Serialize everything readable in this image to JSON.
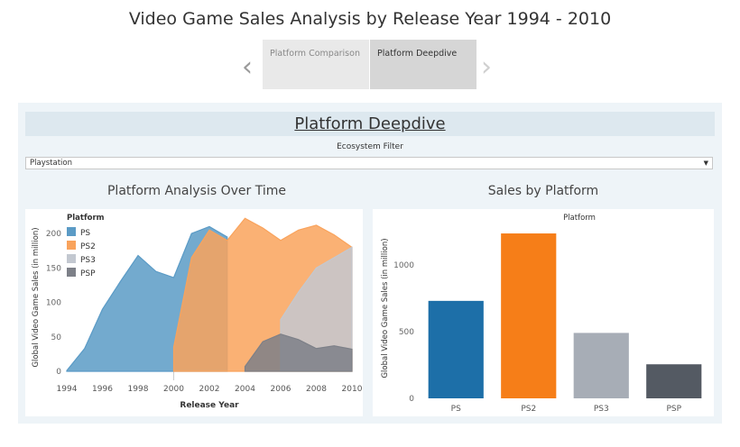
{
  "title": "Video Game Sales Analysis by Release Year 1994 - 2010",
  "tabs": [
    {
      "label": "Platform Comparison"
    },
    {
      "label": "Platform Deepdive"
    }
  ],
  "dashboard": {
    "title": "Platform Deepdive",
    "filter": {
      "label": "Ecosystem Filter",
      "value": "Playstation"
    }
  },
  "colors": {
    "PS": "#5b9bc6",
    "PS2": "#f9a35c",
    "PS3": "#c3c8d0",
    "PSP": "#7d8088",
    "bar_PS": "#1d6fa8",
    "bar_PS2": "#f67e18",
    "bar_PS3": "#a7adb6",
    "bar_PSP": "#545a63"
  },
  "chart_data": [
    {
      "type": "area",
      "title": "Platform Analysis Over Time",
      "xlabel": "Release Year",
      "ylabel": "Global Video Game Sales (in million)",
      "legend_title": "Platform",
      "legend_position": "top-left",
      "x_ticks": [
        "1994",
        "1996",
        "1998",
        "2000",
        "2002",
        "2004",
        "2006",
        "2008",
        "2010"
      ],
      "y_ticks": [
        "0",
        "50",
        "100",
        "150",
        "200"
      ],
      "xlim": [
        1994,
        2010
      ],
      "ylim": [
        0,
        225
      ],
      "series": [
        {
          "name": "PS",
          "x": [
            1994,
            1995,
            1996,
            1997,
            1998,
            1999,
            2000,
            2001,
            2002,
            2003
          ],
          "y": [
            1,
            33,
            90,
            130,
            168,
            145,
            136,
            200,
            210,
            195
          ]
        },
        {
          "name": "PS2",
          "x": [
            2000,
            2001,
            2002,
            2003,
            2004,
            2005,
            2006,
            2007,
            2008,
            2009,
            2010
          ],
          "y": [
            35,
            165,
            205,
            190,
            222,
            208,
            190,
            205,
            212,
            198,
            180
          ]
        },
        {
          "name": "PS3",
          "x": [
            2006,
            2007,
            2008,
            2009,
            2010
          ],
          "y": [
            75,
            115,
            150,
            165,
            180
          ]
        },
        {
          "name": "PSP",
          "x": [
            2004,
            2005,
            2006,
            2007,
            2008,
            2009,
            2010
          ],
          "y": [
            7,
            43,
            54,
            46,
            33,
            37,
            32
          ]
        }
      ]
    },
    {
      "type": "bar",
      "title": "Sales by Platform",
      "xlabel": "",
      "ylabel": "Global Video Game Sales (in million)",
      "top_label": "Platform",
      "categories": [
        "PS",
        "PS2",
        "PS3",
        "PSP"
      ],
      "values": [
        730,
        1235,
        490,
        255
      ],
      "y_ticks": [
        "0",
        "500",
        "1000"
      ],
      "ylim": [
        0,
        1350
      ]
    }
  ]
}
